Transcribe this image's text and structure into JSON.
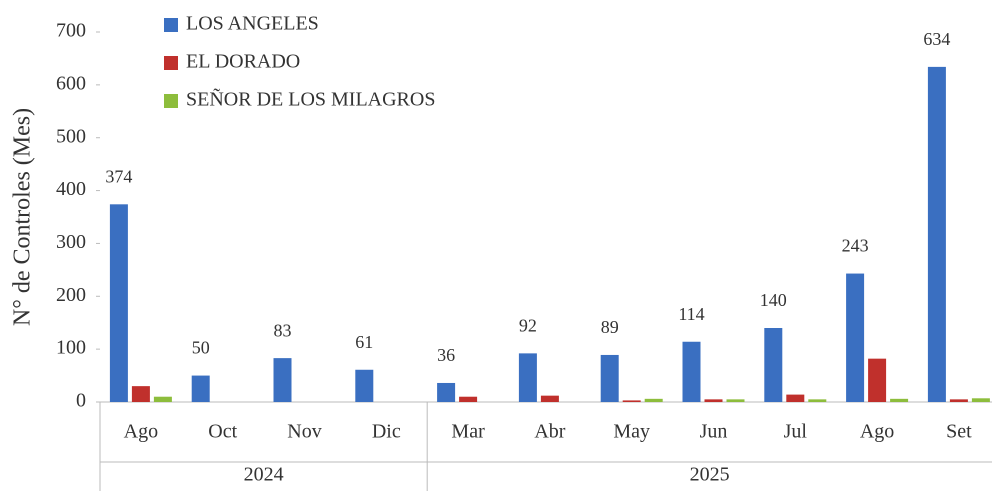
{
  "chart_data": {
    "type": "bar",
    "ylabel": "N° de Controles (Mes)",
    "groups": [
      {
        "label": "2024",
        "categories": [
          "Ago",
          "Oct",
          "Nov",
          "Dic"
        ]
      },
      {
        "label": "2025",
        "categories": [
          "Mar",
          "Abr",
          "May",
          "Jun",
          "Jul",
          "Ago",
          "Set"
        ]
      }
    ],
    "series": [
      {
        "name": "LOS ANGELES",
        "color": "#3a6fc1",
        "show_labels": true,
        "values": [
          374,
          50,
          83,
          61,
          36,
          92,
          89,
          114,
          140,
          243,
          634
        ]
      },
      {
        "name": "EL DORADO",
        "color": "#c0302c",
        "show_labels": false,
        "values": [
          30,
          0,
          0,
          0,
          10,
          12,
          3,
          5,
          14,
          82,
          5
        ]
      },
      {
        "name": "SEÑOR DE LOS MILAGROS",
        "color": "#8dbd3c",
        "show_labels": false,
        "values": [
          10,
          0,
          0,
          0,
          0,
          0,
          6,
          5,
          5,
          6,
          7
        ]
      }
    ],
    "ylim": [
      0,
      700
    ],
    "yticks": [
      0,
      100,
      200,
      300,
      400,
      500,
      600,
      700
    ],
    "legend": "top-left"
  }
}
